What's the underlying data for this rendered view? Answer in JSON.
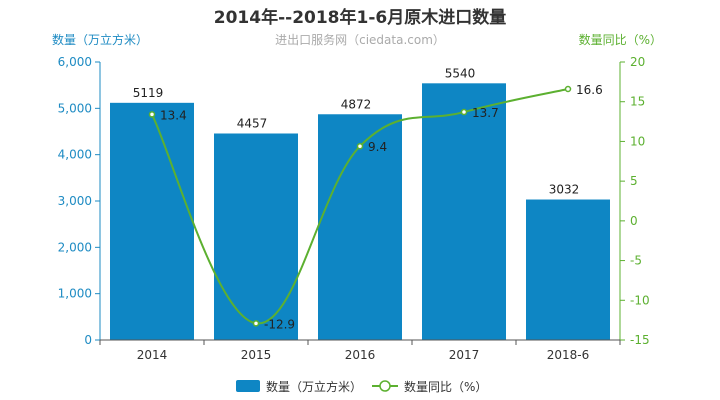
{
  "chart_data": {
    "type": "bar",
    "title": "2014年--2018年1-6月原木进口数量",
    "subtitle": "进出口服务网（ciedata.com）",
    "categories": [
      "2014",
      "2015",
      "2016",
      "2017",
      "2018-6"
    ],
    "series": [
      {
        "name": "数量（万立方米）",
        "type": "bar",
        "axis": "left",
        "values": [
          5119,
          4457,
          4872,
          5540,
          3032
        ],
        "color": "#0e86c4"
      },
      {
        "name": "数量同比（%）",
        "type": "line",
        "axis": "right",
        "values": [
          13.4,
          -12.9,
          9.4,
          13.7,
          16.6
        ],
        "color": "#5cb030"
      }
    ],
    "left_axis": {
      "label": "数量（万立方米）",
      "ylim": [
        0,
        6000
      ],
      "ticks": [
        0,
        1000,
        2000,
        3000,
        4000,
        5000,
        6000
      ],
      "tick_labels": [
        "0",
        "1,000",
        "2,000",
        "3,000",
        "4,000",
        "5,000",
        "6,000"
      ],
      "color": "#1e8bc3"
    },
    "right_axis": {
      "label": "数量同比（%）",
      "ylim": [
        -15,
        20
      ],
      "ticks": [
        -15,
        -10,
        -5,
        0,
        5,
        10,
        15,
        20
      ],
      "tick_labels": [
        "-15",
        "-10",
        "-5",
        "0",
        "5",
        "10",
        "15",
        "20"
      ],
      "color": "#5cb030"
    },
    "legend_position": "bottom-center",
    "grid": false
  }
}
